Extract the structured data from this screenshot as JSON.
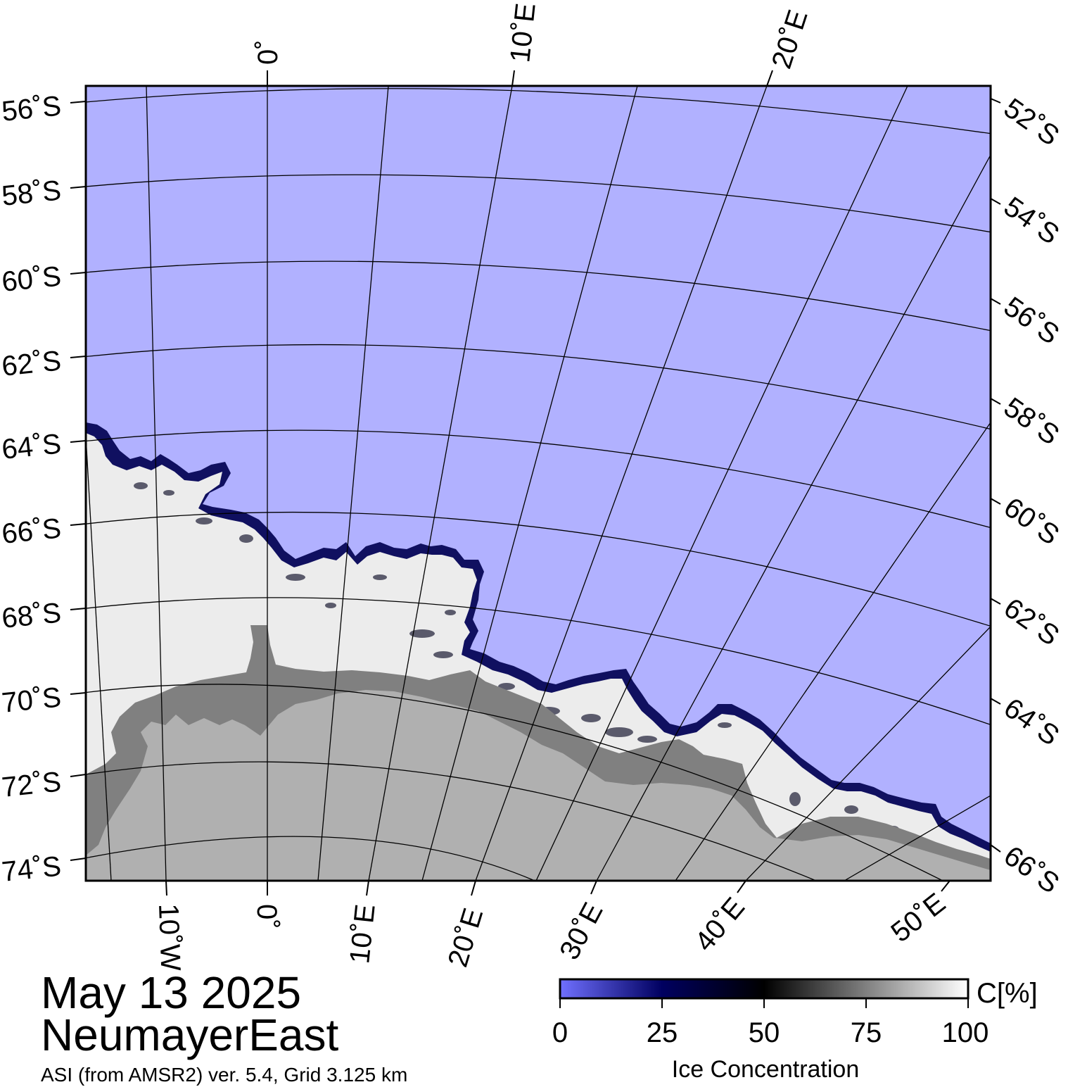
{
  "date": "May 13 2025",
  "region": "NeumayerEast",
  "product": "ASI (from AMSR2) ver. 5.4,  Grid 3.125 km",
  "colors": {
    "open_water": "#b1b1ff",
    "land": "#b0b0b0",
    "ice_shelf": "#808080",
    "graticule": "#000000"
  },
  "lat_labels_left": [
    "56˚S",
    "58˚S",
    "60˚S",
    "62˚S",
    "64˚S",
    "66˚S",
    "68˚S",
    "70˚S",
    "72˚S",
    "74˚S"
  ],
  "lat_labels_right": [
    "52˚S",
    "54˚S",
    "56˚S",
    "58˚S",
    "60˚S",
    "62˚S",
    "64˚S",
    "66˚S"
  ],
  "lon_labels_top": [
    "0˚",
    "10˚E",
    "20˚E"
  ],
  "lon_labels_bottom": [
    "10˚W",
    "0˚",
    "10˚E",
    "20˚E",
    "30˚E",
    "40˚E",
    "50˚E"
  ],
  "colorbar": {
    "title": "Ice Concentration",
    "unit": "C[%]",
    "ticks": [
      "0",
      "25",
      "50",
      "75",
      "100"
    ],
    "gradient": [
      "#7070ff",
      "#000060",
      "#000000",
      "#808080",
      "#ffffff"
    ]
  }
}
